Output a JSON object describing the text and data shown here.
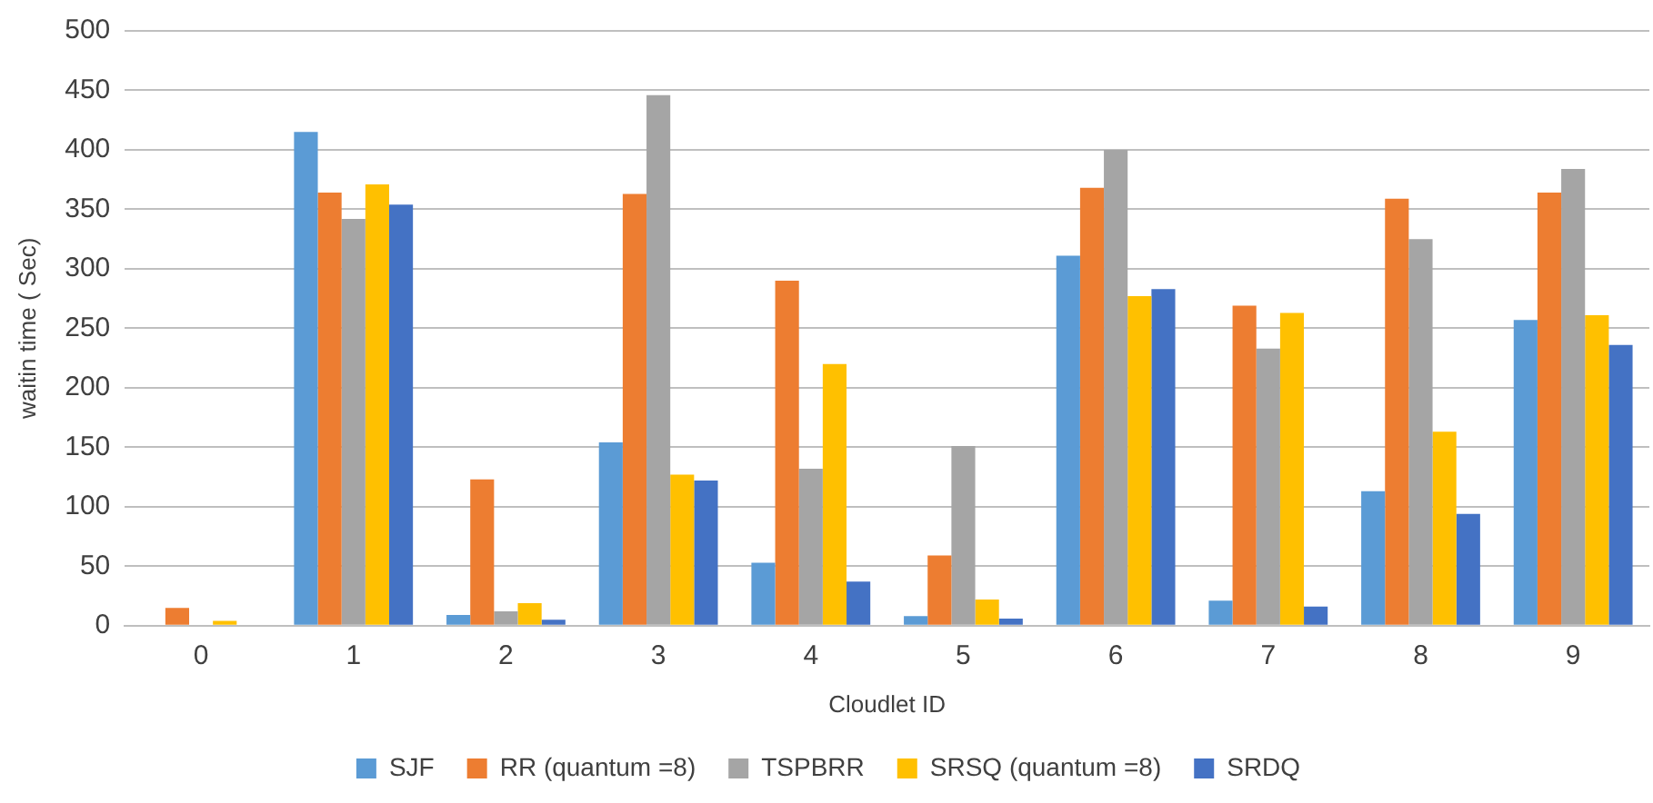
{
  "chart_data": {
    "type": "bar",
    "xlabel": "Cloudlet ID",
    "ylabel": "waitin time ( Sec)",
    "categories": [
      "0",
      "1",
      "2",
      "3",
      "4",
      "5",
      "6",
      "7",
      "8",
      "9"
    ],
    "series": [
      {
        "name": "SJF",
        "color": "#5b9bd5",
        "values": [
          0,
          415,
          9,
          154,
          53,
          8,
          311,
          21,
          113,
          257
        ]
      },
      {
        "name": "RR (quantum =8)",
        "color": "#ed7d31",
        "values": [
          15,
          364,
          123,
          363,
          290,
          59,
          368,
          269,
          359,
          364
        ]
      },
      {
        "name": "TSPBRR",
        "color": "#a5a5a5",
        "values": [
          0,
          342,
          12,
          446,
          132,
          151,
          400,
          233,
          325,
          384
        ]
      },
      {
        "name": "SRSQ (quantum =8)",
        "color": "#ffc000",
        "values": [
          4,
          371,
          19,
          127,
          220,
          22,
          277,
          263,
          163,
          261
        ]
      },
      {
        "name": "SRDQ",
        "color": "#4472c4",
        "values": [
          0,
          354,
          5,
          122,
          37,
          6,
          283,
          16,
          94,
          236
        ]
      }
    ],
    "ylim": [
      0,
      500
    ],
    "yticks": [
      0,
      50,
      100,
      150,
      200,
      250,
      300,
      350,
      400,
      450,
      500
    ],
    "grid": "y",
    "legend": "bottom"
  }
}
